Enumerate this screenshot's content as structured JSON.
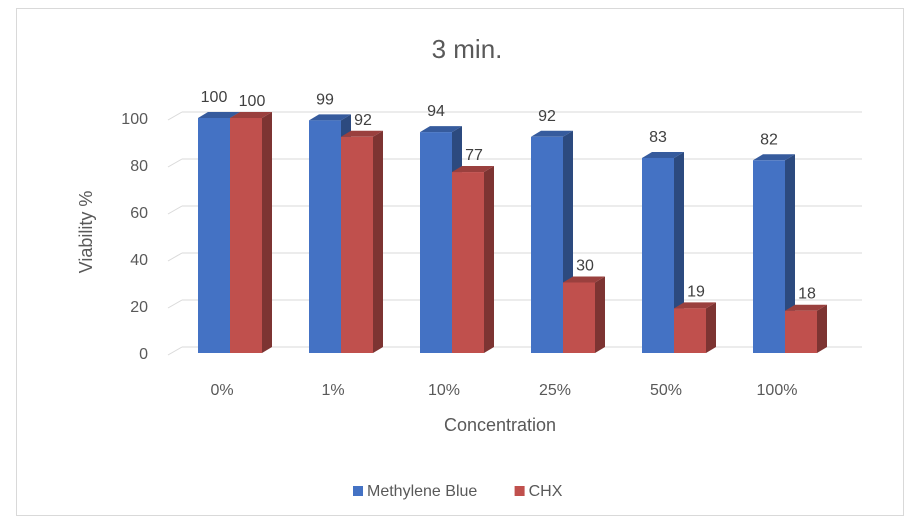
{
  "chart_data": {
    "type": "bar",
    "title": "3 min.",
    "xlabel": "Concentration",
    "ylabel": "Viability %",
    "categories": [
      "0%",
      "1%",
      "10%",
      "25%",
      "50%",
      "100%"
    ],
    "series": [
      {
        "name": "Methylene Blue",
        "values": [
          100,
          99,
          94,
          92,
          83,
          82
        ],
        "color": "#4472c4"
      },
      {
        "name": "CHX",
        "values": [
          100,
          92,
          77,
          30,
          19,
          18
        ],
        "color": "#c0504d"
      }
    ],
    "ylim": [
      0,
      100
    ],
    "yticks": [
      0,
      20,
      40,
      60,
      80,
      100
    ],
    "grid": true,
    "legend": "bottom",
    "style": "3d-clustered-column"
  }
}
